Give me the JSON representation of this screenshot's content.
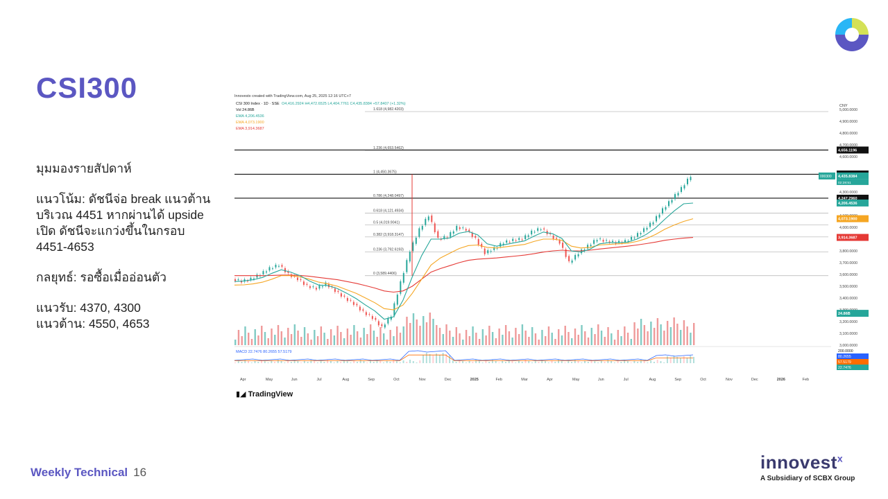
{
  "slide": {
    "title": "CSI300",
    "heading": "มุมมองรายสัปดาห์",
    "trend_lines": [
      "แนวโน้ม: ดัชนีจ่อ break แนวต้าน",
      "บริเวณ 4451 หากผ่านได้ upside",
      "เปิด ดัชนีจะแกว่งขึ้นในกรอบ",
      "4451-4653"
    ],
    "strategy": "กลยุทธ์: รอซื้อเมื่ออ่อนตัว",
    "support": "แนวรับ: 4370, 4300",
    "resistance": "แนวต้าน: 4550, 4653",
    "footer_label": "Weekly Technical",
    "page_number": "16",
    "brand_name": "innovest",
    "brand_mark": "x",
    "brand_sub": "A Subsidiary of SCBX Group",
    "accent": "#5b57c2"
  },
  "chart_data": {
    "type": "line",
    "source_line": "Innovestx created with TradingView.com, Aug 25, 2025 12:16 UTC+7",
    "legend": {
      "symbol": "CSI 300 Index · 1D · SSE",
      "ohlc": "O4,416.2924  H4,472.6525  L4,404.7761  C4,435.8384  +57.8407 (+1.32%)",
      "vol": "Vol  24.86B",
      "ema1": "EMA  4,206.4536",
      "ema2": "EMA  4,073.1900",
      "ema3": "EMA  3,914.3687"
    },
    "currency": "CNY",
    "tradingview_label": "TradingView",
    "y_range": [
      3000,
      5000
    ],
    "y_ticks": [
      {
        "v": 5000,
        "t": "5,000.0000"
      },
      {
        "v": 4900,
        "t": "4,900.0000"
      },
      {
        "v": 4800,
        "t": "4,800.0000"
      },
      {
        "v": 4700,
        "t": "4,700.0000"
      },
      {
        "v": 4600,
        "t": "4,600.0000"
      },
      {
        "v": 4300,
        "t": "4,300.0000"
      },
      {
        "v": 4100,
        "t": "4,100.0000"
      },
      {
        "v": 4000,
        "t": "4,000.0000"
      },
      {
        "v": 3800,
        "t": "3,800.0000"
      },
      {
        "v": 3700,
        "t": "3,700.0000"
      },
      {
        "v": 3600,
        "t": "3,600.0000"
      },
      {
        "v": 3500,
        "t": "3,500.0000"
      },
      {
        "v": 3400,
        "t": "3,400.0000"
      },
      {
        "v": 3300,
        "t": "3,300.0000"
      },
      {
        "v": 3200,
        "t": "3,200.0000"
      },
      {
        "v": 3100,
        "t": "3,100.0000"
      },
      {
        "v": 3000,
        "t": "3,000.0000"
      }
    ],
    "price_tags": [
      {
        "v": 4656.1196,
        "t": "4,656.1196",
        "c": "#111111"
      },
      {
        "v": 4452.5779,
        "t": "4,452.5779",
        "c": "#111111"
      },
      {
        "v": 4435.8384,
        "t": "4,435.8384",
        "sub": "02:28:51",
        "c": "#26a69a",
        "prefix": "000300"
      },
      {
        "v": 4247.296,
        "t": "4,247.2960",
        "c": "#111111"
      },
      {
        "v": 4206.4536,
        "t": "4,206.4536",
        "c": "#26a69a"
      },
      {
        "v": 4073.19,
        "t": "4,073.1900",
        "c": "#f5a623"
      },
      {
        "v": 3914.3687,
        "t": "3,914.3687",
        "c": "#e53935"
      },
      {
        "v": 3270,
        "t": "24.86B",
        "c": "#26a69a"
      }
    ],
    "fib_levels": [
      {
        "v": 4982.4203,
        "t": "1.618 (4,982.4203)"
      },
      {
        "v": 4653.5462,
        "t": "1.236 (4,653.5462)"
      },
      {
        "v": 4450.3675,
        "t": "1 (4,450.3675)"
      },
      {
        "v": 4248.0497,
        "t": "0.786 (4,248.0497)"
      },
      {
        "v": 4121.4934,
        "t": "0.618 (4,121.4934)"
      },
      {
        "v": 4019.9041,
        "t": "0.5 (4,019.9041)"
      },
      {
        "v": 3918.3147,
        "t": "0.382 (3,918.3147)"
      },
      {
        "v": 3792.6193,
        "t": "0.236 (3,792.6193)"
      },
      {
        "v": 3589.4406,
        "t": "0 (3,589.4406)"
      }
    ],
    "bold_lines": [
      4656.1196,
      4450.3675,
      4247.296
    ],
    "months": [
      "Apr",
      "May",
      "Jun",
      "Jul",
      "Aug",
      "Sep",
      "Oct",
      "Nov",
      "Dec",
      "2025",
      "Feb",
      "Mar",
      "Apr",
      "May",
      "Jun",
      "Jul",
      "Aug",
      "Sep",
      "Oct",
      "Nov",
      "Dec",
      "2026",
      "Feb"
    ],
    "price_series": [
      3560,
      3540,
      3560,
      3600,
      3650,
      3680,
      3600,
      3560,
      3500,
      3480,
      3520,
      3460,
      3400,
      3350,
      3280,
      3230,
      3150,
      3250,
      3530,
      3800,
      3980,
      4100,
      3900,
      3920,
      4000,
      3980,
      3900,
      3780,
      3820,
      3870,
      3890,
      3900,
      3960,
      3990,
      3930,
      3870,
      3700,
      3780,
      3840,
      3900,
      3880,
      3870,
      3880,
      3920,
      3980,
      4050,
      4150,
      4240,
      4330,
      4436
    ],
    "ema_fast": [
      3540,
      3545,
      3555,
      3575,
      3610,
      3640,
      3620,
      3590,
      3545,
      3510,
      3505,
      3480,
      3440,
      3395,
      3340,
      3290,
      3220,
      3240,
      3380,
      3580,
      3760,
      3900,
      3900,
      3910,
      3950,
      3965,
      3935,
      3860,
      3840,
      3855,
      3870,
      3885,
      3925,
      3960,
      3945,
      3905,
      3800,
      3790,
      3815,
      3860,
      3870,
      3870,
      3875,
      3900,
      3940,
      3995,
      4070,
      4140,
      4200,
      4206
    ],
    "ema_mid": [
      3510,
      3512,
      3520,
      3535,
      3560,
      3590,
      3590,
      3580,
      3560,
      3535,
      3520,
      3500,
      3470,
      3440,
      3400,
      3360,
      3310,
      3300,
      3340,
      3440,
      3560,
      3680,
      3740,
      3780,
      3820,
      3845,
      3850,
      3830,
      3825,
      3835,
      3845,
      3855,
      3880,
      3900,
      3900,
      3890,
      3840,
      3825,
      3830,
      3850,
      3855,
      3860,
      3865,
      3880,
      3905,
      3940,
      3985,
      4020,
      4050,
      4073
    ],
    "ema_slow": [
      3590,
      3590,
      3590,
      3590,
      3592,
      3595,
      3595,
      3592,
      3585,
      3575,
      3565,
      3555,
      3540,
      3525,
      3505,
      3485,
      3460,
      3450,
      3460,
      3500,
      3560,
      3620,
      3650,
      3675,
      3700,
      3720,
      3730,
      3735,
      3740,
      3748,
      3756,
      3764,
      3776,
      3790,
      3800,
      3806,
      3800,
      3800,
      3806,
      3816,
      3824,
      3832,
      3840,
      3850,
      3862,
      3875,
      3890,
      3900,
      3908,
      3914
    ],
    "macd_legend": "MACD  22.7476  80.2655  57.5179",
    "macd_tags": [
      {
        "t": "200.0000",
        "c": "#ffffff",
        "tc": "#111111"
      },
      {
        "t": "80.2655",
        "c": "#2962ff",
        "tc": "#ffffff"
      },
      {
        "t": "57.5179",
        "c": "#ff6d00",
        "tc": "#ffffff"
      },
      {
        "t": "22.7476",
        "c": "#26a69a",
        "tc": "#ffffff"
      }
    ],
    "colors": {
      "up": "#26a69a",
      "down": "#ef5350",
      "ema_fast": "#26a69a",
      "ema_mid": "#f5a623",
      "ema_slow": "#e53935"
    }
  }
}
